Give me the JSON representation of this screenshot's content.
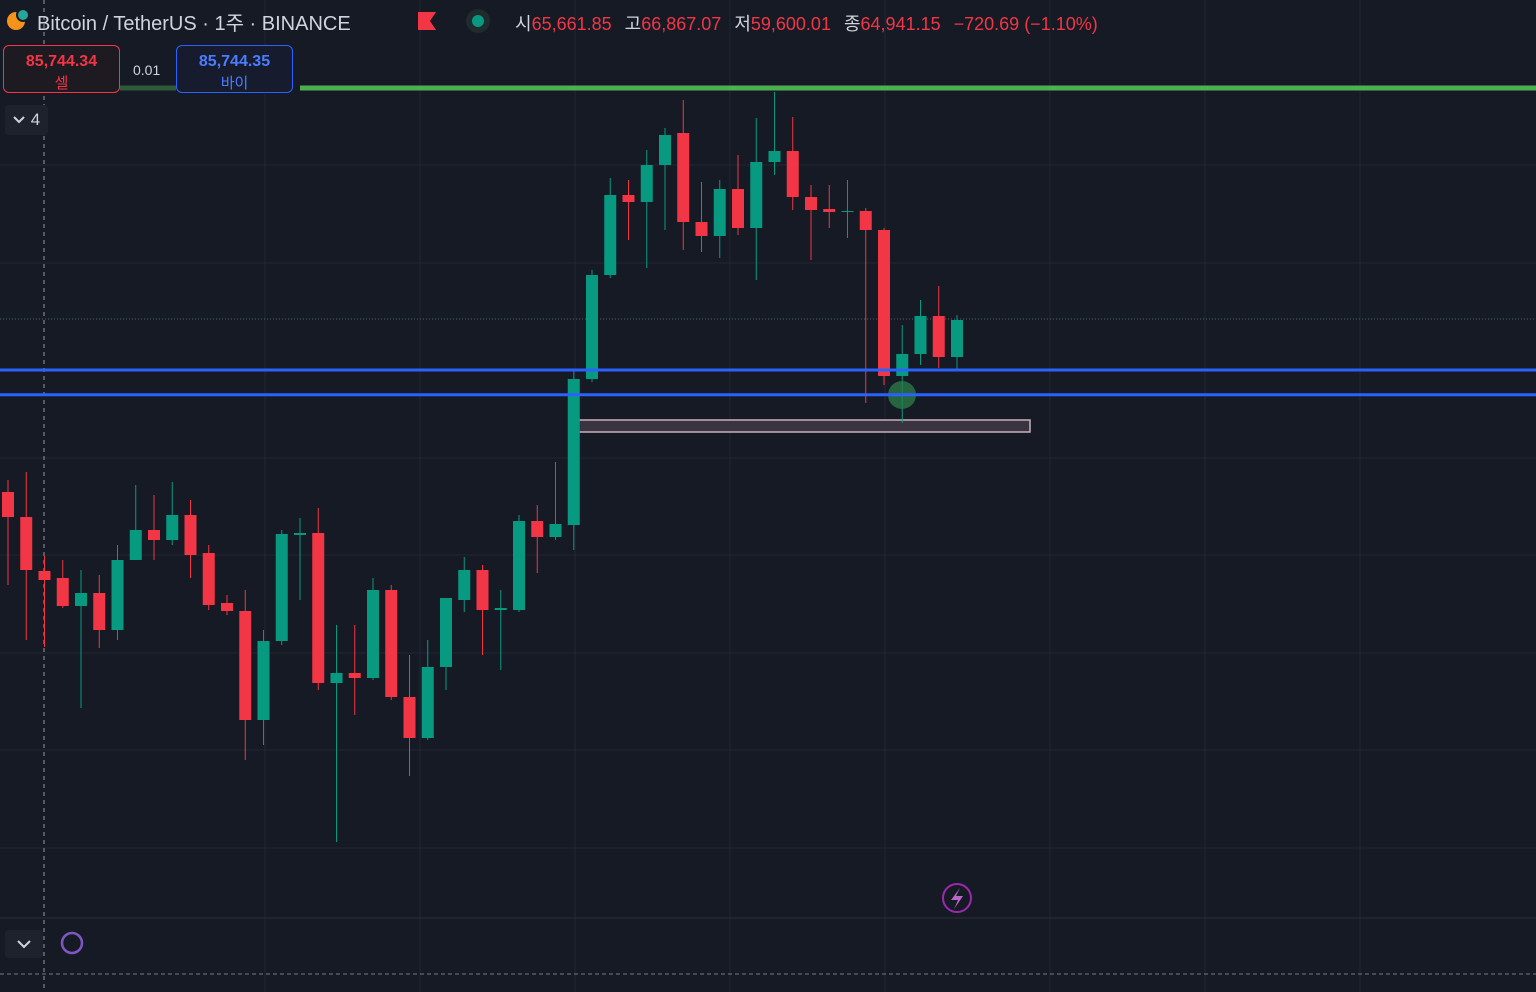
{
  "header": {
    "symbol": "Bitcoin / TetherUS · 1주 · BINANCE",
    "ohlc": [
      {
        "label": "시",
        "value": "65,661.85"
      },
      {
        "label": "고",
        "value": "66,867.07"
      },
      {
        "label": "저",
        "value": "59,600.01"
      },
      {
        "label": "종",
        "value": "64,941.15"
      }
    ],
    "change": "−720.69 (−1.10%)"
  },
  "trade": {
    "sell_price": "85,744.34",
    "sell_label": "셀",
    "quantity": "0.01",
    "buy_price": "85,744.35",
    "buy_label": "바이"
  },
  "toolbar": {
    "count": "4"
  },
  "chart_data": {
    "type": "candlestick",
    "up_color": "#089981",
    "down_color": "#f23645",
    "ylim": [
      37844,
      111168
    ],
    "last_price": 85744,
    "levels": [
      {
        "value": 104155,
        "color": "#4caf50"
      },
      {
        "value": 81679,
        "color": "#2962ff"
      },
      {
        "value": 79711,
        "color": "#2962ff"
      }
    ],
    "open": [
      71956,
      69963,
      65661.85,
      65101,
      62870,
      63906,
      60957,
      66536,
      68927,
      68130,
      70123,
      67094,
      63109,
      62471,
      53784,
      60080,
      68529,
      68688,
      56733,
      57530,
      57131,
      64145,
      55617,
      52349,
      58008,
      63348,
      65739,
      62551,
      62551,
      69644,
      68369,
      69325,
      80962,
      89250,
      95627,
      95069,
      98017,
      100568,
      93475,
      92359,
      96105,
      92996,
      98257,
      99133,
      95467,
      94511,
      94272,
      94351,
      92837,
      81201,
      82954,
      85983,
      82715
    ],
    "high": [
      72912,
      73550,
      66867.07,
      66536,
      65739,
      65340,
      67731,
      72513,
      71717,
      72753,
      71318,
      67731,
      63746,
      64145,
      60957,
      68927,
      69883,
      70681,
      61356,
      61356,
      65101,
      64543,
      58964,
      60160,
      63507,
      66775,
      66137,
      64145,
      70123,
      70920,
      74347,
      81679,
      89649,
      96981,
      96822,
      99213,
      100966,
      103198,
      96663,
      96822,
      98814,
      101763,
      103836,
      101843,
      96424,
      96424,
      96822,
      94590,
      92996,
      85265,
      87258,
      88374,
      86063
    ],
    "low": [
      64543,
      60160,
      59600.01,
      62710,
      54740,
      59523,
      60160,
      66536,
      66536,
      67731,
      65101,
      62551,
      62153,
      50596,
      51791,
      59762,
      63348,
      56175,
      44061,
      54182,
      56972,
      55378,
      49321,
      52190,
      56175,
      62392,
      58964,
      57769,
      62392,
      65500,
      68130,
      67333,
      80723,
      89011,
      92040,
      89808,
      92837,
      91243,
      91084,
      90605,
      92438,
      88852,
      97221,
      94431,
      90446,
      92996,
      92199,
      79049,
      80483,
      77455,
      82077,
      81838,
      81679
    ],
    "close": [
      69963,
      65739,
      64941.15,
      62870,
      63906,
      60957,
      66536,
      68927,
      68130,
      70123,
      66934,
      62949,
      62471,
      53784,
      60080,
      68608,
      68688,
      56733,
      57530,
      57131,
      64145,
      55617,
      52349,
      58008,
      63507,
      65739,
      62551,
      62710,
      69644,
      68369,
      69405,
      80962,
      89250,
      95627,
      95069,
      98017,
      100408,
      93475,
      92359,
      96105,
      92996,
      98257,
      99133,
      95467,
      94431,
      94272,
      94351,
      92837,
      81201,
      82954,
      85983,
      82715,
      85664
    ]
  }
}
